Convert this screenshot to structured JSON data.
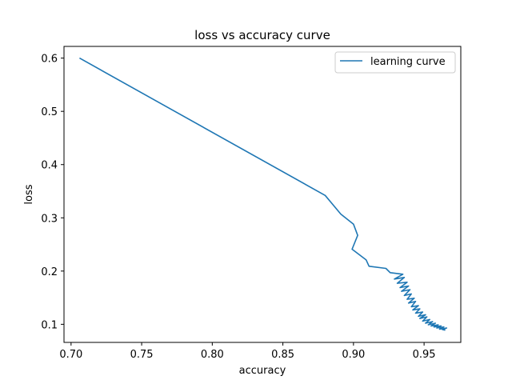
{
  "chart_data": {
    "type": "line",
    "title": "loss vs accuracy curve",
    "xlabel": "accuracy",
    "ylabel": "loss",
    "xlim": [
      0.695,
      0.976
    ],
    "ylim": [
      0.066,
      0.622
    ],
    "xticks": [
      0.7,
      0.75,
      0.8,
      0.85,
      0.9,
      0.95
    ],
    "xtick_labels": [
      "0.70",
      "0.75",
      "0.80",
      "0.85",
      "0.90",
      "0.95"
    ],
    "yticks": [
      0.1,
      0.2,
      0.3,
      0.4,
      0.5,
      0.6
    ],
    "ytick_labels": [
      "0.1",
      "0.2",
      "0.3",
      "0.4",
      "0.5",
      "0.6"
    ],
    "grid": false,
    "legend": {
      "position": "top-right"
    },
    "colors": {
      "series": "#1f77b4",
      "axes": "#000000"
    },
    "series": [
      {
        "name": "learning curve",
        "x": [
          0.706,
          0.88,
          0.891,
          0.9,
          0.903,
          0.899,
          0.909,
          0.911,
          0.923,
          0.926,
          0.935,
          0.929,
          0.936,
          0.931,
          0.938,
          0.933,
          0.939,
          0.934,
          0.94,
          0.936,
          0.941,
          0.938,
          0.943,
          0.939,
          0.944,
          0.941,
          0.946,
          0.942,
          0.947,
          0.944,
          0.949,
          0.946,
          0.951,
          0.947,
          0.952,
          0.949,
          0.954,
          0.951,
          0.956,
          0.953,
          0.958,
          0.955,
          0.96,
          0.957,
          0.962,
          0.959,
          0.964,
          0.961,
          0.966,
          0.963,
          0.965
        ],
        "y": [
          0.6,
          0.342,
          0.307,
          0.288,
          0.267,
          0.241,
          0.221,
          0.209,
          0.205,
          0.197,
          0.194,
          0.185,
          0.188,
          0.177,
          0.179,
          0.169,
          0.172,
          0.162,
          0.165,
          0.154,
          0.157,
          0.147,
          0.149,
          0.14,
          0.143,
          0.133,
          0.135,
          0.127,
          0.129,
          0.121,
          0.123,
          0.115,
          0.118,
          0.111,
          0.114,
          0.106,
          0.109,
          0.102,
          0.105,
          0.099,
          0.102,
          0.097,
          0.099,
          0.095,
          0.097,
          0.093,
          0.095,
          0.091,
          0.093,
          0.09,
          0.089
        ]
      }
    ]
  }
}
